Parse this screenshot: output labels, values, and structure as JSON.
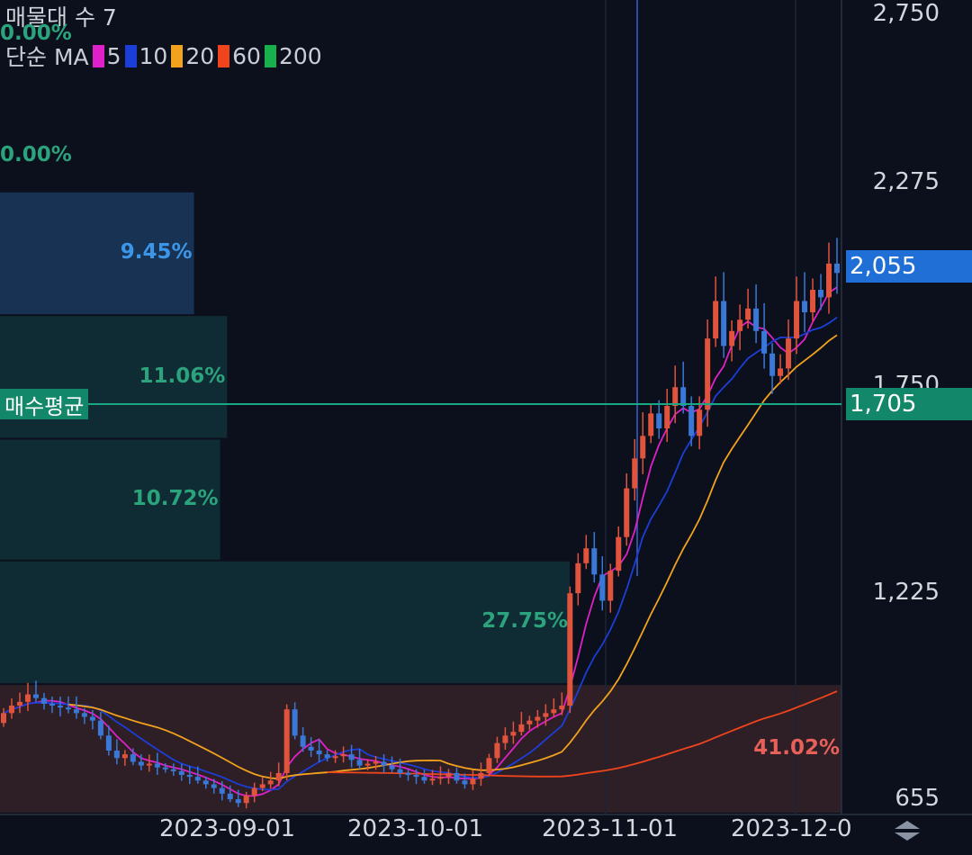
{
  "header": {
    "title": "매물대 수 7",
    "ma_prefix": "단순 MA",
    "ma_items": [
      {
        "label": "5",
        "color": "#e020c8"
      },
      {
        "label": "10",
        "color": "#1c3ed8"
      },
      {
        "label": "20",
        "color": "#f2a21c"
      },
      {
        "label": "60",
        "color": "#f0441c"
      },
      {
        "label": "200",
        "color": "#18b04c"
      }
    ]
  },
  "y_axis": {
    "ticks": [
      "2,750",
      "2,275",
      "1,750",
      "1,225",
      "655"
    ],
    "current_price": "2,055",
    "avg_price": "1,705"
  },
  "x_axis": {
    "ticks": [
      "2023-09-01",
      "2023-10-01",
      "2023-11-01",
      "2023-12-0"
    ]
  },
  "avg_label": "매수평균",
  "chart_data": {
    "type": "candlestick",
    "title": "",
    "x_ticks": [
      "2023-09-01",
      "2023-10-01",
      "2023-11-01",
      "2023-12-0"
    ],
    "y_ticks": [
      2750,
      2275,
      1750,
      1225,
      655
    ],
    "ylim": [
      600,
      2780
    ],
    "current_price": 2055,
    "average_buy_price": 1705,
    "volume_profile": [
      {
        "label": "0.00%",
        "from": 2600,
        "to": 2780,
        "percent": 0.0
      },
      {
        "label": "0.00%",
        "from": 2270,
        "to": 2460,
        "percent": 0.0
      },
      {
        "label": "9.45%",
        "from": 1940,
        "to": 2270,
        "percent": 9.45,
        "color": "#173252",
        "text_color": "#3d95e8"
      },
      {
        "label": "11.06%",
        "from": 1610,
        "to": 1940,
        "percent": 11.06,
        "color": "#0f2c34",
        "text_color": "#2ba37c"
      },
      {
        "label": "10.72%",
        "from": 1285,
        "to": 1610,
        "percent": 10.72,
        "color": "#0f2c34",
        "text_color": "#2ba37c"
      },
      {
        "label": "27.75%",
        "from": 955,
        "to": 1285,
        "percent": 27.75,
        "color": "#0f2c34",
        "text_color": "#2ba37c"
      },
      {
        "label": "41.02%",
        "from": 600,
        "to": 955,
        "percent": 41.02,
        "color": "#2e1f26",
        "text_color": "#e8605a"
      }
    ],
    "close_series": [
      880,
      900,
      910,
      930,
      920,
      905,
      900,
      895,
      890,
      880,
      870,
      860,
      820,
      780,
      760,
      770,
      750,
      740,
      745,
      735,
      730,
      725,
      715,
      710,
      700,
      690,
      680,
      665,
      650,
      640,
      660,
      680,
      690,
      700,
      720,
      890,
      820,
      790,
      780,
      770,
      760,
      765,
      770,
      755,
      740,
      745,
      750,
      740,
      730,
      720,
      715,
      710,
      700,
      705,
      710,
      720,
      700,
      690,
      705,
      720,
      760,
      800,
      820,
      830,
      850,
      860,
      870,
      880,
      890,
      900,
      1200,
      1280,
      1320,
      1250,
      1180,
      1260,
      1350,
      1480,
      1560,
      1620,
      1680,
      1640,
      1700,
      1750,
      1700,
      1620,
      1690,
      1880,
      1980,
      1860,
      1900,
      1930,
      1960,
      1900,
      1840,
      1780,
      1800,
      1880,
      1980,
      1950,
      2010,
      1990,
      2080,
      2055
    ],
    "ma_series": [
      {
        "name": "5",
        "color": "#e020c8"
      },
      {
        "name": "10",
        "color": "#1c3ed8"
      },
      {
        "name": "20",
        "color": "#f2a21c"
      },
      {
        "name": "60",
        "color": "#f0441c"
      }
    ],
    "up_color": "#e0533c",
    "down_color": "#3a78d8"
  }
}
